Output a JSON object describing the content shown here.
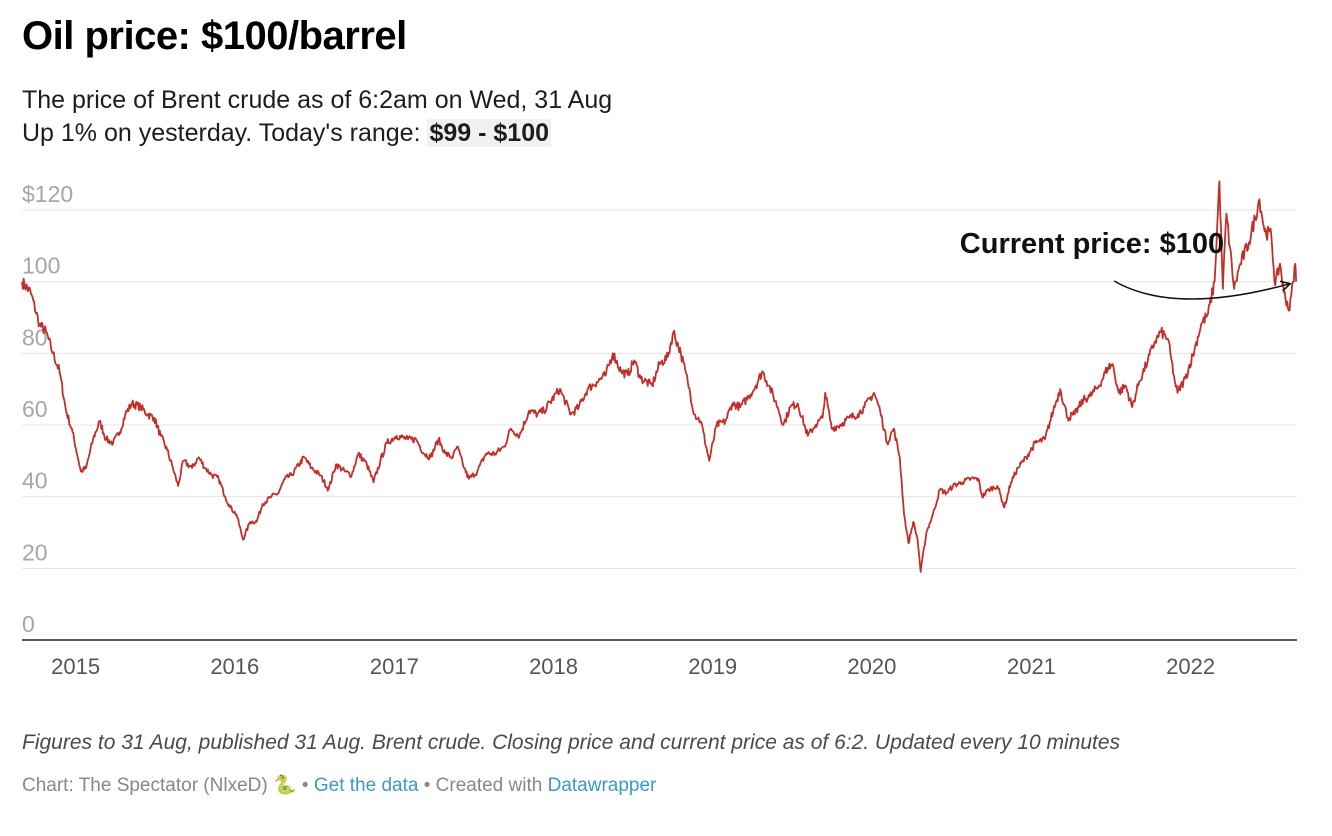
{
  "title": "Oil price: $100/barrel",
  "subtitle": {
    "line1": "The price of Brent crude as of 6:2am on Wed, 31 Aug",
    "line2_prefix": "Up 1% on yesterday. Today's range: ",
    "range": "$99 - $100"
  },
  "notes": "Figures to 31 Aug, published 31 Aug. Brent crude. Closing price and current price as of 6:2. Updated every 10 minutes",
  "credits": {
    "chart_by": "Chart: The Spectator (NlxeD)",
    "snake_icon": "🐍",
    "sep1": " • ",
    "get_data": "Get the data",
    "sep2": " • Created with ",
    "tool": "Datawrapper"
  },
  "colors": {
    "line": "#c0302a",
    "grid": "#e4e4e4",
    "axis": "#222222",
    "link": "#3b9ac4"
  },
  "chart_data": {
    "type": "line",
    "title": "Oil price: $100/barrel",
    "xlabel": "",
    "ylabel": "",
    "x_tick_labels": [
      "2015",
      "2016",
      "2017",
      "2018",
      "2019",
      "2020",
      "2021",
      "2022"
    ],
    "y_ticks": [
      0,
      20,
      40,
      60,
      80,
      100,
      120
    ],
    "y_tick_labels": [
      "0",
      "20",
      "40",
      "60",
      "80",
      "100",
      "$120"
    ],
    "ylim": [
      0,
      120
    ],
    "xlim": [
      "2014-08-31",
      "2022-09-02"
    ],
    "grid": true,
    "annotation": {
      "text": "Current price: $100",
      "x": "2022-08-31",
      "y": 100
    },
    "series": [
      {
        "values": [
          [
            "2014-08-31",
            100
          ],
          [
            "2014-09-20",
            97
          ],
          [
            "2014-10-10",
            88
          ],
          [
            "2014-10-25",
            86
          ],
          [
            "2014-11-10",
            80
          ],
          [
            "2014-11-25",
            75
          ],
          [
            "2014-12-10",
            64
          ],
          [
            "2014-12-25",
            58
          ],
          [
            "2015-01-13",
            47
          ],
          [
            "2015-01-25",
            48
          ],
          [
            "2015-02-10",
            56
          ],
          [
            "2015-02-25",
            61
          ],
          [
            "2015-03-12",
            56
          ],
          [
            "2015-03-28",
            55
          ],
          [
            "2015-04-12",
            58
          ],
          [
            "2015-04-25",
            63
          ],
          [
            "2015-05-10",
            66
          ],
          [
            "2015-05-30",
            65
          ],
          [
            "2015-06-15",
            63
          ],
          [
            "2015-06-30",
            62
          ],
          [
            "2015-07-15",
            57
          ],
          [
            "2015-07-30",
            53
          ],
          [
            "2015-08-12",
            48
          ],
          [
            "2015-08-24",
            43
          ],
          [
            "2015-09-05",
            50
          ],
          [
            "2015-09-25",
            48
          ],
          [
            "2015-10-10",
            51
          ],
          [
            "2015-10-25",
            48
          ],
          [
            "2015-11-10",
            46
          ],
          [
            "2015-11-25",
            45
          ],
          [
            "2015-12-10",
            40
          ],
          [
            "2015-12-22",
            37
          ],
          [
            "2016-01-05",
            35
          ],
          [
            "2016-01-20",
            28
          ],
          [
            "2016-02-05",
            33
          ],
          [
            "2016-02-20",
            33
          ],
          [
            "2016-03-05",
            38
          ],
          [
            "2016-03-25",
            40
          ],
          [
            "2016-04-10",
            41
          ],
          [
            "2016-04-25",
            45
          ],
          [
            "2016-05-10",
            46
          ],
          [
            "2016-06-08",
            51
          ],
          [
            "2016-06-25",
            48
          ],
          [
            "2016-07-15",
            46
          ],
          [
            "2016-08-03",
            42
          ],
          [
            "2016-08-20",
            49
          ],
          [
            "2016-09-10",
            47
          ],
          [
            "2016-09-25",
            46
          ],
          [
            "2016-10-10",
            52
          ],
          [
            "2016-10-30",
            49
          ],
          [
            "2016-11-14",
            44
          ],
          [
            "2016-11-30",
            50
          ],
          [
            "2016-12-15",
            55
          ],
          [
            "2017-01-06",
            57
          ],
          [
            "2017-02-01",
            56
          ],
          [
            "2017-02-20",
            56
          ],
          [
            "2017-03-10",
            52
          ],
          [
            "2017-03-25",
            51
          ],
          [
            "2017-04-12",
            56
          ],
          [
            "2017-04-28",
            52
          ],
          [
            "2017-05-15",
            51
          ],
          [
            "2017-05-25",
            54
          ],
          [
            "2017-06-10",
            48
          ],
          [
            "2017-06-21",
            45
          ],
          [
            "2017-07-10",
            47
          ],
          [
            "2017-07-30",
            52
          ],
          [
            "2017-08-20",
            52
          ],
          [
            "2017-09-10",
            54
          ],
          [
            "2017-09-25",
            59
          ],
          [
            "2017-10-15",
            57
          ],
          [
            "2017-11-06",
            64
          ],
          [
            "2017-11-25",
            63
          ],
          [
            "2017-12-10",
            64
          ],
          [
            "2018-01-15",
            70
          ],
          [
            "2018-02-10",
            63
          ],
          [
            "2018-02-28",
            65
          ],
          [
            "2018-03-20",
            70
          ],
          [
            "2018-04-10",
            72
          ],
          [
            "2018-05-01",
            74
          ],
          [
            "2018-05-17",
            80
          ],
          [
            "2018-06-05",
            75
          ],
          [
            "2018-06-20",
            74
          ],
          [
            "2018-07-05",
            78
          ],
          [
            "2018-07-20",
            73
          ],
          [
            "2018-08-15",
            71
          ],
          [
            "2018-09-01",
            77
          ],
          [
            "2018-09-20",
            79
          ],
          [
            "2018-10-03",
            86
          ],
          [
            "2018-10-20",
            80
          ],
          [
            "2018-11-05",
            72
          ],
          [
            "2018-11-20",
            63
          ],
          [
            "2018-12-05",
            61
          ],
          [
            "2018-12-24",
            50
          ],
          [
            "2019-01-10",
            60
          ],
          [
            "2019-01-30",
            61
          ],
          [
            "2019-02-15",
            66
          ],
          [
            "2019-03-05",
            65
          ],
          [
            "2019-03-25",
            68
          ],
          [
            "2019-04-10",
            71
          ],
          [
            "2019-04-25",
            75
          ],
          [
            "2019-05-10",
            71
          ],
          [
            "2019-05-30",
            65
          ],
          [
            "2019-06-12",
            60
          ],
          [
            "2019-06-28",
            65
          ],
          [
            "2019-07-15",
            66
          ],
          [
            "2019-08-07",
            57
          ],
          [
            "2019-08-25",
            60
          ],
          [
            "2019-09-10",
            62
          ],
          [
            "2019-09-16",
            69
          ],
          [
            "2019-10-01",
            59
          ],
          [
            "2019-10-20",
            60
          ],
          [
            "2019-11-10",
            62
          ],
          [
            "2019-11-30",
            63
          ],
          [
            "2019-12-15",
            65
          ],
          [
            "2020-01-06",
            69
          ],
          [
            "2020-01-20",
            64
          ],
          [
            "2020-02-05",
            55
          ],
          [
            "2020-02-20",
            59
          ],
          [
            "2020-03-05",
            51
          ],
          [
            "2020-03-15",
            35
          ],
          [
            "2020-03-25",
            27
          ],
          [
            "2020-04-05",
            33
          ],
          [
            "2020-04-15",
            28
          ],
          [
            "2020-04-22",
            19
          ],
          [
            "2020-05-05",
            30
          ],
          [
            "2020-05-20",
            35
          ],
          [
            "2020-06-05",
            42
          ],
          [
            "2020-06-20",
            41
          ],
          [
            "2020-07-05",
            43
          ],
          [
            "2020-07-25",
            44
          ],
          [
            "2020-08-15",
            45
          ],
          [
            "2020-09-01",
            45
          ],
          [
            "2020-09-10",
            40
          ],
          [
            "2020-09-25",
            42
          ],
          [
            "2020-10-15",
            43
          ],
          [
            "2020-10-31",
            37
          ],
          [
            "2020-11-15",
            44
          ],
          [
            "2020-12-01",
            48
          ],
          [
            "2020-12-20",
            51
          ],
          [
            "2021-01-10",
            55
          ],
          [
            "2021-02-01",
            56
          ],
          [
            "2021-02-20",
            64
          ],
          [
            "2021-03-08",
            70
          ],
          [
            "2021-03-25",
            62
          ],
          [
            "2021-04-10",
            63
          ],
          [
            "2021-04-30",
            67
          ],
          [
            "2021-05-15",
            68
          ],
          [
            "2021-06-05",
            71
          ],
          [
            "2021-06-25",
            76
          ],
          [
            "2021-07-06",
            77
          ],
          [
            "2021-07-20",
            69
          ],
          [
            "2021-08-05",
            71
          ],
          [
            "2021-08-20",
            65
          ],
          [
            "2021-09-05",
            72
          ],
          [
            "2021-09-25",
            78
          ],
          [
            "2021-10-10",
            83
          ],
          [
            "2021-10-25",
            86
          ],
          [
            "2021-11-10",
            84
          ],
          [
            "2021-11-26",
            72
          ],
          [
            "2021-12-02",
            69
          ],
          [
            "2021-12-20",
            73
          ],
          [
            "2022-01-10",
            81
          ],
          [
            "2022-01-25",
            88
          ],
          [
            "2022-02-10",
            91
          ],
          [
            "2022-02-25",
            100
          ],
          [
            "2022-03-08",
            128
          ],
          [
            "2022-03-16",
            98
          ],
          [
            "2022-03-24",
            119
          ],
          [
            "2022-04-11",
            98
          ],
          [
            "2022-04-25",
            105
          ],
          [
            "2022-05-15",
            111
          ],
          [
            "2022-06-08",
            123
          ],
          [
            "2022-06-20",
            114
          ],
          [
            "2022-07-05",
            113
          ],
          [
            "2022-07-14",
            99
          ],
          [
            "2022-07-25",
            105
          ],
          [
            "2022-08-03",
            97
          ],
          [
            "2022-08-16",
            92
          ],
          [
            "2022-08-24",
            100
          ],
          [
            "2022-08-29",
            105
          ],
          [
            "2022-08-31",
            100
          ]
        ]
      }
    ]
  }
}
